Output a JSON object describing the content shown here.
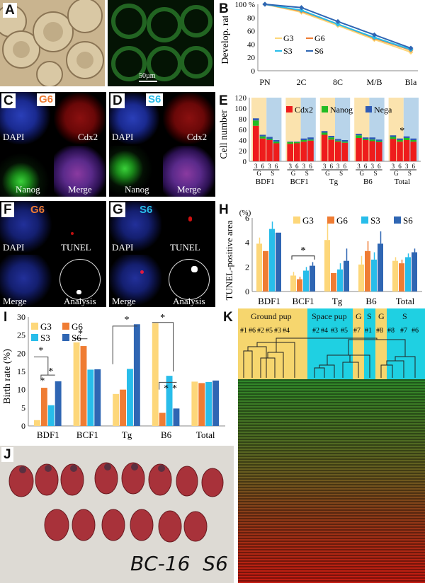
{
  "panel_labels": {
    "A": "A",
    "B": "B",
    "C": "C",
    "D": "D",
    "E": "E",
    "F": "F",
    "G": "G",
    "H": "H",
    "I": "I",
    "J": "J",
    "K": "K"
  },
  "panel_a": {
    "scale_bar": "50µm"
  },
  "panel_c": {
    "tag": "G6",
    "labels": [
      "DAPI",
      "Cdx2",
      "Nanog",
      "Merge"
    ]
  },
  "panel_d": {
    "tag": "S6",
    "labels": [
      "DAPI",
      "Cdx2",
      "Nanog",
      "Merge"
    ]
  },
  "panel_f": {
    "tag": "G6",
    "labels": [
      "DAPI",
      "TUNEL",
      "Merge",
      "Analysis"
    ]
  },
  "panel_g": {
    "tag": "S6",
    "labels": [
      "DAPI",
      "TUNEL",
      "Merge",
      "Analysis"
    ]
  },
  "panel_j": {
    "handwriting": "BC-16  S6"
  },
  "panel_k": {
    "groups": [
      "Ground pup",
      "Space pup",
      "G",
      "S",
      "G",
      "S"
    ],
    "leaves": [
      "#1",
      "#6",
      "#2",
      "#5",
      "#3",
      "#4",
      "#2",
      "#4",
      "#3",
      "#5",
      "#7",
      "#1",
      "#8",
      "#8",
      "#7",
      "#6"
    ],
    "colors": {
      "ground": "#f6d66e",
      "space": "#1fd0e2"
    }
  },
  "colors": {
    "G3": "#fdd77a",
    "G6": "#ef7c33",
    "S3": "#28bdea",
    "S6": "#2f66b3",
    "cdx2": "#ee1c1c",
    "nanog": "#22bb22",
    "nega": "#2f5bb5"
  },
  "chart_data": [
    {
      "type": "line",
      "panel": "B",
      "ylabel": "Develop. rate",
      "categories": [
        "PN",
        "2C",
        "8C",
        "M/B",
        "Bla"
      ],
      "y_ticks": [
        "0",
        "20",
        "40",
        "60",
        "80",
        "100 %"
      ],
      "ylim": [
        0,
        100
      ],
      "legend": "center-left",
      "series": [
        {
          "name": "G3",
          "values": [
            100,
            88,
            68,
            47,
            28
          ]
        },
        {
          "name": "G6",
          "values": [
            100,
            90,
            70,
            49,
            31
          ]
        },
        {
          "name": "S3",
          "values": [
            100,
            91,
            70,
            50,
            32
          ]
        },
        {
          "name": "S6",
          "values": [
            100,
            95,
            74,
            54,
            34
          ]
        }
      ]
    },
    {
      "type": "bar",
      "panel": "E",
      "ylabel": "Cell number",
      "y_ticks": [
        "0",
        "20",
        "40",
        "60",
        "80",
        "100",
        "120"
      ],
      "ylim": [
        0,
        120
      ],
      "legend": "top",
      "series_names": [
        "Cdx2",
        "Nanog",
        "Nega"
      ],
      "group_labels": [
        "BDF1",
        "BCF1",
        "Tg",
        "B6",
        "Total"
      ],
      "sub_labels": [
        "G",
        "S"
      ],
      "bar_labels": [
        "3",
        "6",
        "3",
        "6"
      ],
      "annotation": "*",
      "groups": [
        {
          "name": "BDF1",
          "bars": [
            [
              67,
              10,
              4
            ],
            [
              43,
              4,
              3
            ],
            [
              40,
              2,
              4
            ],
            [
              34,
              3,
              3
            ]
          ]
        },
        {
          "name": "BCF1",
          "bars": [
            [
              33,
              3,
              1
            ],
            [
              34,
              2,
              1
            ],
            [
              37,
              3,
              3
            ],
            [
              39,
              2,
              4
            ]
          ]
        },
        {
          "name": "Tg",
          "bars": [
            [
              50,
              4,
              3
            ],
            [
              41,
              4,
              3
            ],
            [
              37,
              2,
              3
            ],
            [
              35,
              2,
              3
            ]
          ]
        },
        {
          "name": "B6",
          "bars": [
            [
              44,
              5,
              3
            ],
            [
              40,
              2,
              3
            ],
            [
              38,
              3,
              4
            ],
            [
              36,
              2,
              3
            ]
          ]
        },
        {
          "name": "Total",
          "bars": [
            [
              42,
              4,
              3
            ],
            [
              37,
              3,
              3
            ],
            [
              40,
              4,
              3
            ],
            [
              37,
              3,
              3
            ]
          ]
        }
      ]
    },
    {
      "type": "bar",
      "panel": "H",
      "ylabel": "TUNEL-positive area",
      "unit_label": "(%)",
      "y_ticks": [
        "0",
        "2",
        "4",
        "6"
      ],
      "ylim": [
        0,
        6
      ],
      "legend": "top",
      "categories": [
        "BDF1",
        "BCF1",
        "Tg",
        "B6",
        "Total"
      ],
      "annotation": "*",
      "series": [
        {
          "name": "G3",
          "values": [
            3.9,
            1.3,
            4.2,
            2.2,
            2.5
          ],
          "err": [
            0.5,
            0.3,
            1.4,
            0.7,
            0.3
          ]
        },
        {
          "name": "G6",
          "values": [
            3.3,
            1.0,
            1.5,
            3.3,
            2.3
          ],
          "err": [
            0.0,
            0.2,
            0.0,
            0.8,
            0.3
          ]
        },
        {
          "name": "S3",
          "values": [
            5.1,
            1.7,
            1.8,
            2.6,
            2.8
          ],
          "err": [
            0.6,
            0.3,
            0.5,
            0.6,
            0.3
          ]
        },
        {
          "name": "S6",
          "values": [
            4.8,
            2.1,
            2.5,
            3.9,
            3.2
          ],
          "err": [
            0.0,
            0.3,
            1.0,
            1.0,
            0.3
          ]
        }
      ]
    },
    {
      "type": "bar",
      "panel": "I",
      "ylabel": "Birth rate (%)",
      "y_ticks": [
        "0",
        "5",
        "10",
        "15",
        "20",
        "25",
        "30"
      ],
      "ylim": [
        0,
        30
      ],
      "legend": "top-left",
      "categories": [
        "BDF1",
        "BCF1",
        "Tg",
        "B6",
        "Total"
      ],
      "annotation": "*",
      "series": [
        {
          "name": "G3",
          "values": [
            1.6,
            23.0,
            8.8,
            28.3,
            12.2
          ]
        },
        {
          "name": "G6",
          "values": [
            10.5,
            22.0,
            10.0,
            3.6,
            11.8
          ]
        },
        {
          "name": "S3",
          "values": [
            5.7,
            15.5,
            15.7,
            13.8,
            12.1
          ]
        },
        {
          "name": "S6",
          "values": [
            12.3,
            15.6,
            28.0,
            4.8,
            12.5
          ]
        }
      ]
    }
  ]
}
